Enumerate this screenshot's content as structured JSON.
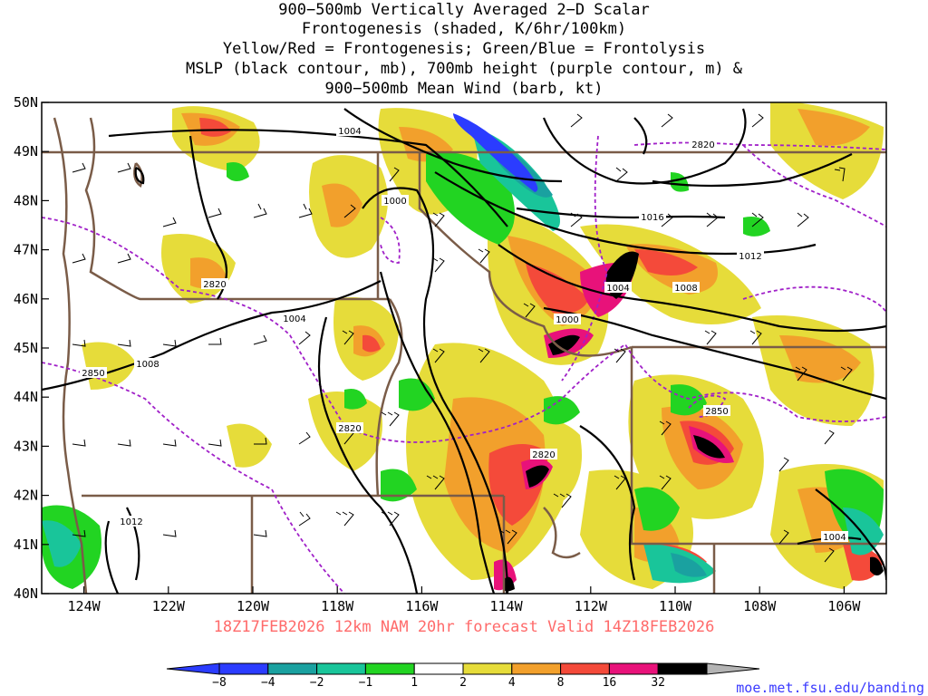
{
  "title_lines": [
    "900−500mb Vertically Averaged 2−D Scalar",
    "Frontogenesis (shaded, K/6hr/100km)",
    "Yellow/Red = Frontogenesis;  Green/Blue = Frontolysis",
    "MSLP (black contour, mb), 700mb height (purple contour, m) &",
    "900−500mb Mean Wind (barb, kt)"
  ],
  "axes": {
    "lon_labels": [
      "124W",
      "122W",
      "120W",
      "118W",
      "116W",
      "114W",
      "112W",
      "110W",
      "108W",
      "106W"
    ],
    "lon_values": [
      -124,
      -122,
      -120,
      -118,
      -116,
      -114,
      -112,
      -110,
      -108,
      -106
    ],
    "lat_labels": [
      "50N",
      "49N",
      "48N",
      "47N",
      "46N",
      "45N",
      "44N",
      "43N",
      "42N",
      "41N",
      "40N"
    ],
    "lat_values": [
      50,
      49,
      48,
      47,
      46,
      45,
      44,
      43,
      42,
      41,
      40
    ],
    "lon_range": [
      -125,
      -105
    ],
    "lat_range": [
      40,
      50
    ]
  },
  "subtitle": "18Z17FEB2026 12km NAM 20hr forecast Valid 14Z18FEB2026",
  "credit": "moe.met.fsu.edu/banding",
  "colorbar": {
    "labels": [
      "−8",
      "−4",
      "−2",
      "−1",
      "1",
      "2",
      "4",
      "8",
      "16",
      "32"
    ],
    "colors": [
      "#2b3cff",
      "#1aa1a0",
      "#19c59a",
      "#22d422",
      "#ffffff",
      "#e6dc3a",
      "#f2a02c",
      "#f44a3a",
      "#e8127a",
      "#000000"
    ],
    "tail_color": "#b4b4b4"
  },
  "contour_labels": {
    "mslp": [
      "1004",
      "1000",
      "1016",
      "1012",
      "1004",
      "1008",
      "1000",
      "1004",
      "1008",
      "1012",
      "1004"
    ],
    "height": [
      "2820",
      "2820",
      "2850",
      "2820",
      "2820",
      "2850"
    ]
  },
  "colors": {
    "border": "#7a5c48",
    "mslp": "#000000",
    "height": "#a020c8"
  }
}
